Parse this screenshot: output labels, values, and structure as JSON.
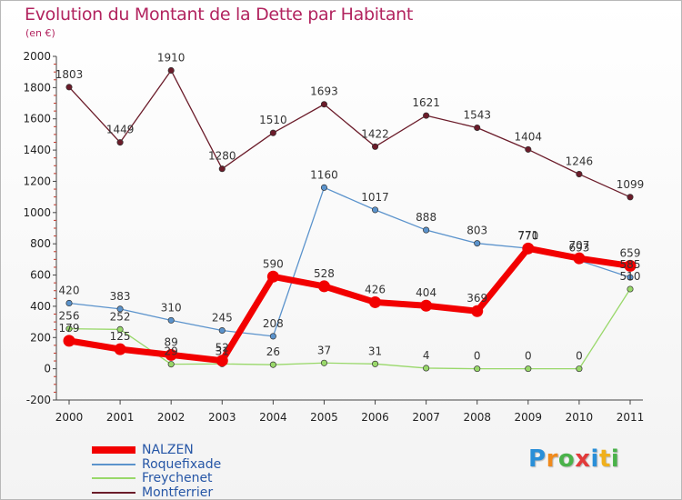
{
  "title": "Evolution du Montant de la Dette par Habitant",
  "subtitle": "(en €)",
  "brand": {
    "name": "Proxiti",
    "letters": [
      "P",
      "r",
      "o",
      "x",
      "i",
      "t",
      "i"
    ],
    "letter_colors": [
      "#2a8fd8",
      "#f08a1c",
      "#4ab24a",
      "#e23a3a",
      "#2a8fd8",
      "#f0b01c",
      "#4ab24a"
    ]
  },
  "chart_data": {
    "type": "line",
    "title": "Evolution du Montant de la Dette par Habitant",
    "subtitle": "(en €)",
    "x": [
      "2000",
      "2001",
      "2002",
      "2003",
      "2004",
      "2005",
      "2006",
      "2007",
      "2008",
      "2009",
      "2010",
      "2011"
    ],
    "ylim": [
      -200,
      2000
    ],
    "yticks": [
      -200,
      0,
      200,
      400,
      600,
      800,
      1000,
      1200,
      1400,
      1600,
      1800,
      2000
    ],
    "grid": false,
    "legend_position": "bottom-left",
    "series": [
      {
        "name": "Montferrier",
        "color": "#6b1c2a",
        "labels_shown": true,
        "values": [
          1803,
          1449,
          1910,
          1280,
          1510,
          1693,
          1422,
          1621,
          1543,
          1404,
          1246,
          1099
        ]
      },
      {
        "name": "Freychenet",
        "color": "#99d86a",
        "labels_shown": true,
        "values": [
          256,
          252,
          29,
          31,
          26,
          37,
          31,
          4,
          0,
          0,
          0,
          510
        ]
      },
      {
        "name": "Roquefixade",
        "color": "#5b93cc",
        "labels_shown": true,
        "values": [
          420,
          383,
          310,
          245,
          208,
          1160,
          1017,
          888,
          803,
          771,
          693,
          585
        ]
      },
      {
        "name": "NALZEN",
        "color": "#f20000",
        "labels_shown": true,
        "values": [
          179,
          125,
          89,
          52,
          590,
          528,
          426,
          404,
          369,
          770,
          707,
          659
        ]
      }
    ],
    "legend": [
      "NALZEN",
      "Roquefixade",
      "Freychenet",
      "Montferrier"
    ]
  }
}
